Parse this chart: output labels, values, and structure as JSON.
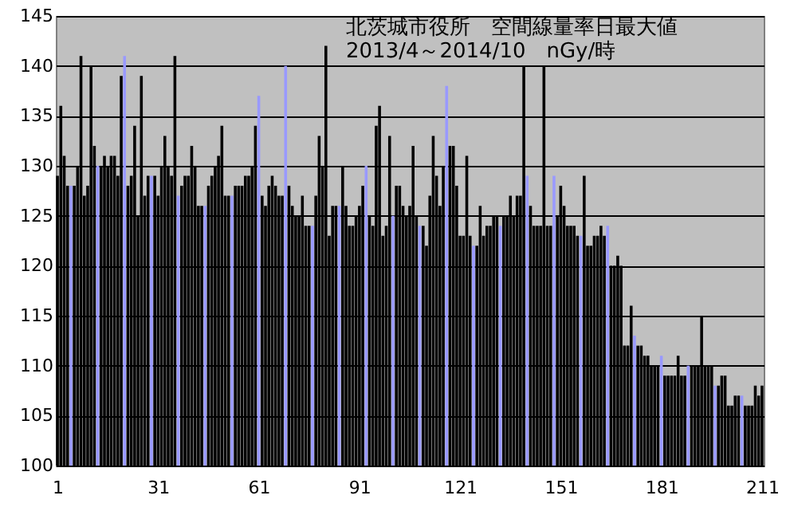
{
  "chart_data": {
    "type": "bar",
    "title": "北茨城市役所　空間線量率日最大値",
    "subtitle": "2013/4～2014/10　nGy/時",
    "x": [
      1,
      2,
      3,
      4,
      5,
      6,
      7,
      8,
      9,
      10,
      11,
      12,
      13,
      14,
      15,
      16,
      17,
      18,
      19,
      20,
      21,
      22,
      23,
      24,
      25,
      26,
      27,
      28,
      29,
      30,
      31,
      32,
      33,
      34,
      35,
      36,
      37,
      38,
      39,
      40,
      41,
      42,
      43,
      44,
      45,
      46,
      47,
      48,
      49,
      50,
      51,
      52,
      53,
      54,
      55,
      56,
      57,
      58,
      59,
      60,
      61,
      62,
      63,
      64,
      65,
      66,
      67,
      68,
      69,
      70,
      71,
      72,
      73,
      74,
      75,
      76,
      77,
      78,
      79,
      80,
      81,
      82,
      83,
      84,
      85,
      86,
      87,
      88,
      89,
      90,
      91,
      92,
      93,
      94,
      95,
      96,
      97,
      98,
      99,
      100,
      101,
      102,
      103,
      104,
      105,
      106,
      107,
      108,
      109,
      110,
      111,
      112,
      113,
      114,
      115,
      116,
      117,
      118,
      119,
      120,
      121,
      122,
      123,
      124,
      125,
      126,
      127,
      128,
      129,
      130,
      131,
      132,
      133,
      134,
      135,
      136,
      137,
      138,
      139,
      140,
      141,
      142,
      143,
      144,
      145,
      146,
      147,
      148,
      149,
      150,
      151,
      152,
      153,
      154,
      155,
      156,
      157,
      158,
      159,
      160,
      161,
      162,
      163,
      164,
      165,
      166,
      167,
      168,
      169,
      170,
      171,
      172,
      173,
      174,
      175,
      176,
      177,
      178,
      179,
      180,
      181,
      182,
      183,
      184,
      185,
      186,
      187,
      188,
      189,
      190,
      191,
      192,
      193,
      194,
      195,
      196,
      197,
      198,
      199,
      200,
      201,
      202,
      203,
      204,
      205,
      206,
      207,
      208,
      209,
      210,
      211
    ],
    "values": [
      129,
      136,
      131,
      128,
      128,
      128,
      130,
      141,
      127,
      128,
      140,
      132,
      130,
      130,
      131,
      130,
      131,
      131,
      129,
      139,
      141,
      128,
      129,
      134,
      125,
      139,
      127,
      129,
      129,
      129,
      127,
      130,
      133,
      130,
      129,
      141,
      127,
      128,
      129,
      129,
      132,
      130,
      126,
      126,
      126,
      128,
      129,
      130,
      131,
      134,
      127,
      127,
      127,
      128,
      128,
      128,
      129,
      129,
      130,
      134,
      137,
      127,
      126,
      128,
      129,
      128,
      127,
      127,
      140,
      128,
      126,
      125,
      125,
      127,
      124,
      124,
      124,
      127,
      133,
      130,
      142,
      123,
      126,
      126,
      126,
      130,
      126,
      124,
      124,
      125,
      126,
      128,
      130,
      125,
      124,
      134,
      136,
      123,
      124,
      133,
      125,
      128,
      128,
      126,
      125,
      126,
      132,
      125,
      124,
      124,
      122,
      127,
      133,
      129,
      126,
      130,
      138,
      132,
      132,
      128,
      123,
      123,
      131,
      123,
      122,
      122,
      126,
      123,
      124,
      124,
      125,
      125,
      124,
      125,
      125,
      127,
      125,
      127,
      127,
      140,
      129,
      126,
      124,
      124,
      124,
      140,
      124,
      124,
      129,
      125,
      128,
      126,
      124,
      124,
      124,
      123,
      123,
      129,
      122,
      122,
      123,
      123,
      124,
      123,
      124,
      120,
      120,
      121,
      120,
      112,
      112,
      116,
      113,
      112,
      112,
      111,
      111,
      110,
      110,
      110,
      111,
      109,
      109,
      109,
      109,
      111,
      109,
      109,
      110,
      110,
      110,
      110,
      115,
      110,
      110,
      110,
      108,
      108,
      109,
      109,
      106,
      106,
      107,
      107,
      107,
      106,
      106,
      106,
      108,
      107,
      108
    ],
    "colors": [
      "#000000",
      "#000000",
      "#000000",
      "#000000",
      "#9999ff",
      "#000000",
      "#000000",
      "#000000",
      "#000000",
      "#000000",
      "#000000",
      "#000000",
      "#9999ff",
      "#000000",
      "#000000",
      "#000000",
      "#000000",
      "#000000",
      "#000000",
      "#000000",
      "#9999ff",
      "#000000",
      "#000000",
      "#000000",
      "#000000",
      "#000000",
      "#000000",
      "#000000",
      "#9999ff",
      "#000000",
      "#000000",
      "#000000",
      "#000000",
      "#000000",
      "#000000",
      "#000000",
      "#9999ff",
      "#000000",
      "#000000",
      "#000000",
      "#000000",
      "#000000",
      "#000000",
      "#000000",
      "#9999ff",
      "#000000",
      "#000000",
      "#000000",
      "#000000",
      "#000000",
      "#000000",
      "#000000",
      "#9999ff",
      "#000000",
      "#000000",
      "#000000",
      "#000000",
      "#000000",
      "#000000",
      "#000000",
      "#9999ff",
      "#000000",
      "#000000",
      "#000000",
      "#000000",
      "#000000",
      "#000000",
      "#000000",
      "#9999ff",
      "#000000",
      "#000000",
      "#000000",
      "#000000",
      "#000000",
      "#000000",
      "#000000",
      "#9999ff",
      "#000000",
      "#000000",
      "#000000",
      "#000000",
      "#000000",
      "#000000",
      "#000000",
      "#9999ff",
      "#000000",
      "#000000",
      "#000000",
      "#000000",
      "#000000",
      "#000000",
      "#000000",
      "#9999ff",
      "#000000",
      "#000000",
      "#000000",
      "#000000",
      "#000000",
      "#000000",
      "#000000",
      "#9999ff",
      "#000000",
      "#000000",
      "#000000",
      "#000000",
      "#000000",
      "#000000",
      "#000000",
      "#9999ff",
      "#000000",
      "#000000",
      "#000000",
      "#000000",
      "#000000",
      "#000000",
      "#000000",
      "#9999ff",
      "#000000",
      "#000000",
      "#000000",
      "#000000",
      "#000000",
      "#000000",
      "#000000",
      "#9999ff",
      "#000000",
      "#000000",
      "#000000",
      "#000000",
      "#000000",
      "#000000",
      "#000000",
      "#9999ff",
      "#000000",
      "#000000",
      "#000000",
      "#000000",
      "#000000",
      "#000000",
      "#000000",
      "#9999ff",
      "#000000",
      "#000000",
      "#000000",
      "#000000",
      "#000000",
      "#000000",
      "#000000",
      "#9999ff",
      "#000000",
      "#000000",
      "#000000",
      "#000000",
      "#000000",
      "#000000",
      "#000000",
      "#9999ff",
      "#000000",
      "#000000",
      "#000000",
      "#000000",
      "#000000",
      "#000000",
      "#000000",
      "#9999ff",
      "#000000",
      "#000000",
      "#000000",
      "#000000",
      "#000000",
      "#000000",
      "#000000",
      "#9999ff",
      "#000000",
      "#000000",
      "#000000",
      "#000000",
      "#000000",
      "#000000",
      "#000000",
      "#9999ff",
      "#000000",
      "#000000",
      "#000000",
      "#000000",
      "#000000",
      "#000000",
      "#000000",
      "#9999ff",
      "#000000",
      "#000000",
      "#000000",
      "#000000",
      "#000000",
      "#000000",
      "#000000",
      "#9999ff",
      "#000000",
      "#000000",
      "#000000",
      "#000000",
      "#000000",
      "#000000",
      "#000000",
      "#9999ff",
      "#000000",
      "#000000",
      "#000000",
      "#000000",
      "#000000",
      "#000000"
    ],
    "xlim": [
      0.5,
      211.5
    ],
    "xticks": [
      1,
      31,
      61,
      91,
      121,
      151,
      181,
      211
    ],
    "ylim": [
      100,
      145
    ],
    "yticks": [
      100,
      105,
      110,
      115,
      120,
      125,
      130,
      135,
      140,
      145
    ],
    "grid": "y"
  }
}
